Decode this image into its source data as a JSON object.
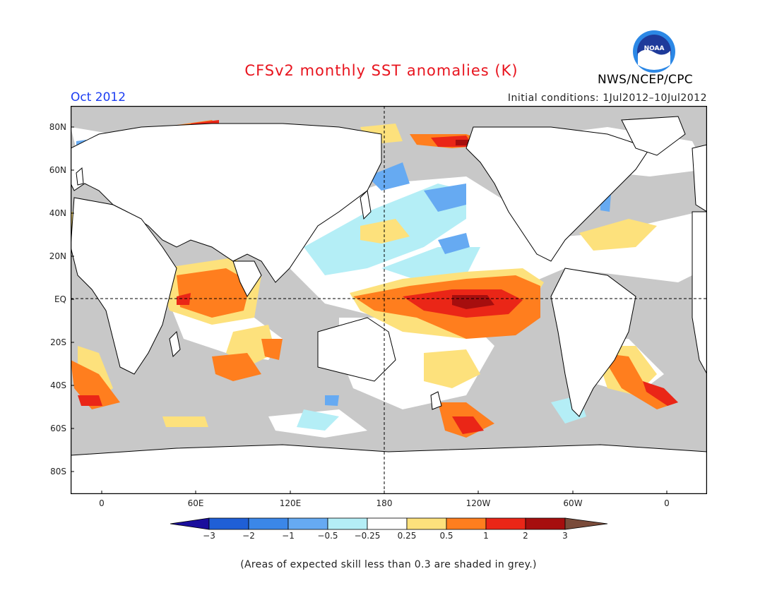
{
  "header": {
    "title": "CFSv2 monthly SST anomalies (K)",
    "month": "Oct 2012",
    "initial_conditions": "Initial conditions: 1Jul2012–10Jul2012",
    "agency": "NWS/NCEP/CPC",
    "logo_text": "NOAA"
  },
  "map": {
    "lat_labels": [
      "80N",
      "60N",
      "40N",
      "20N",
      "EQ",
      "20S",
      "40S",
      "60S",
      "80S"
    ],
    "lon_labels": [
      "0",
      "60E",
      "120E",
      "180",
      "120W",
      "60W",
      "0"
    ],
    "colors": {
      "land": "#ffffff",
      "low_skill": "#c8c8c8",
      "coastline": "#000000"
    }
  },
  "colorbar": {
    "labels": [
      "−3",
      "−2",
      "−1",
      "−0.5",
      "−0.25",
      "0.25",
      "0.5",
      "1",
      "2",
      "3"
    ],
    "colors": [
      "#1a0e9c",
      "#1f5fd6",
      "#3b87e8",
      "#66aaf2",
      "#b4eef6",
      "#ffffff",
      "#fde17c",
      "#ff7e1e",
      "#ea2617",
      "#a60e0e",
      "#7a4b3a"
    ]
  },
  "footnote": "(Areas of expected skill less than 0.3 are shaded in grey.)"
}
